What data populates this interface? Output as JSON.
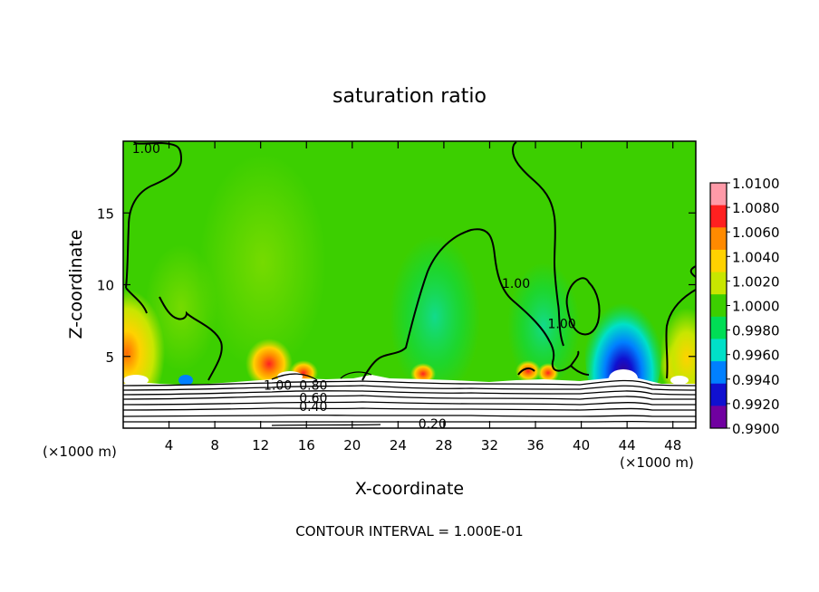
{
  "chart_data": {
    "type": "heatmap",
    "title": "saturation ratio",
    "xlabel": "X-coordinate",
    "ylabel": "Z-coordinate",
    "x_unit": "(×1000 m)",
    "x_unit_bottom": "(×1000 m)",
    "xlim": [
      0,
      50
    ],
    "ylim": [
      0,
      20
    ],
    "xticks": [
      4,
      8,
      12,
      16,
      20,
      24,
      28,
      32,
      36,
      40,
      44,
      48
    ],
    "yticks": [
      5,
      10,
      15
    ],
    "footer": "CONTOUR INTERVAL = 1.000E-01",
    "colorbar": {
      "levels": [
        "1.0100",
        "1.0080",
        "1.0060",
        "1.0040",
        "1.0020",
        "1.0000",
        "0.9980",
        "0.9960",
        "0.9940",
        "0.9920",
        "0.9900"
      ],
      "colors": [
        "#ff9aa8",
        "#ff2020",
        "#ff8a00",
        "#ffd200",
        "#c8e600",
        "#3ccf00",
        "#00dd55",
        "#00e0c8",
        "#0080ff",
        "#1010d0",
        "#7000a0"
      ],
      "background_color": "#3ccf00"
    },
    "contour_labels": [
      {
        "text": "1.00",
        "x": 2.0,
        "y": 19.5
      },
      {
        "text": "1.00",
        "x": 34.3,
        "y": 10.1
      },
      {
        "text": "1.00",
        "x": 38.3,
        "y": 7.3
      },
      {
        "text": "1.00",
        "x": 13.5,
        "y": 3.0
      },
      {
        "text": "0.80",
        "x": 16.6,
        "y": 3.0
      },
      {
        "text": "0.60",
        "x": 16.6,
        "y": 2.1
      },
      {
        "text": "0.40",
        "x": 16.6,
        "y": 1.5
      },
      {
        "text": "0.20",
        "x": 27.0,
        "y": 0.3
      }
    ],
    "series": [
      {
        "values": [
          {
            "x": 2.0,
            "y": 3.5,
            "v": 1.0045
          },
          {
            "x": 1.0,
            "y": 5.0,
            "v": 1.0035
          },
          {
            "x": 13.0,
            "y": 4.0,
            "v": 1.006
          },
          {
            "x": 16.0,
            "y": 3.6,
            "v": 1.006
          },
          {
            "x": 26.0,
            "y": 3.5,
            "v": 1.005
          },
          {
            "x": 35.5,
            "y": 3.8,
            "v": 1.005
          },
          {
            "x": 48.5,
            "y": 4.0,
            "v": 1.006
          },
          {
            "x": 43.0,
            "y": 4.5,
            "v": 0.992
          },
          {
            "x": 43.0,
            "y": 6.5,
            "v": 0.995
          },
          {
            "x": 28.0,
            "y": 8.0,
            "v": 0.9985
          },
          {
            "x": 5.5,
            "y": 3.3,
            "v": 0.995
          },
          {
            "x": 12.0,
            "y": 11.0,
            "v": 1.0015
          }
        ]
      }
    ]
  }
}
